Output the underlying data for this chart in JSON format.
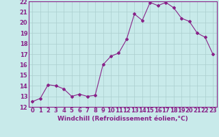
{
  "x": [
    0,
    1,
    2,
    3,
    4,
    5,
    6,
    7,
    8,
    9,
    10,
    11,
    12,
    13,
    14,
    15,
    16,
    17,
    18,
    19,
    20,
    21,
    22,
    23
  ],
  "y": [
    12.5,
    12.8,
    14.1,
    14.0,
    13.7,
    13.0,
    13.2,
    13.0,
    13.1,
    16.0,
    16.8,
    17.1,
    18.4,
    20.8,
    20.2,
    21.9,
    21.6,
    21.9,
    21.4,
    20.4,
    20.1,
    19.0,
    18.6,
    17.0
  ],
  "line_color": "#882288",
  "marker": "D",
  "marker_size": 2.0,
  "bg_color": "#c8eaea",
  "grid_color": "#aacece",
  "xlabel": "Windchill (Refroidissement éolien,°C)",
  "xlabel_fontsize": 6.5,
  "tick_fontsize": 6.0,
  "ylim": [
    12,
    22
  ],
  "xlim": [
    -0.5,
    23.5
  ],
  "yticks": [
    12,
    13,
    14,
    15,
    16,
    17,
    18,
    19,
    20,
    21,
    22
  ],
  "xticks": [
    0,
    1,
    2,
    3,
    4,
    5,
    6,
    7,
    8,
    9,
    10,
    11,
    12,
    13,
    14,
    15,
    16,
    17,
    18,
    19,
    20,
    21,
    22,
    23
  ],
  "spine_color": "#882288",
  "line_width": 0.8
}
